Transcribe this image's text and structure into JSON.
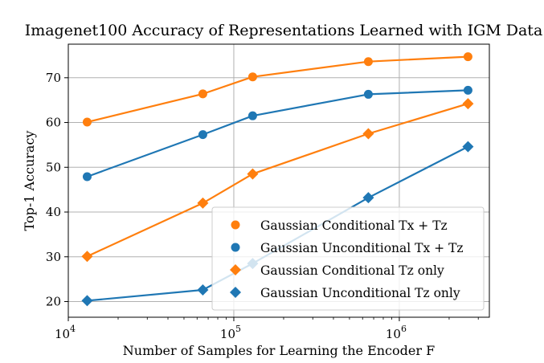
{
  "chart_data": {
    "type": "line",
    "title": "Imagenet100 Accuracy of Representations Learned with IGM Data",
    "xlabel": "Number of Samples for Learning the Encoder F",
    "ylabel": "Top-1 Accuracy",
    "xscale": "log",
    "xlim": [
      10000,
      3500000
    ],
    "ylim": [
      16.5,
      77.5
    ],
    "grid": true,
    "legend_position": "lower right",
    "x_ticks": [
      {
        "value": 10000,
        "base": "10",
        "exp": "4"
      },
      {
        "value": 100000,
        "base": "10",
        "exp": "5"
      },
      {
        "value": 1000000,
        "base": "10",
        "exp": "6"
      }
    ],
    "y_ticks": [
      20,
      30,
      40,
      50,
      60,
      70
    ],
    "x": [
      13000,
      65000,
      130000,
      650000,
      2600000
    ],
    "series": [
      {
        "name": "Gaussian Conditional Tx + Tz",
        "color": "#ff7f0e",
        "marker": "circle",
        "values": [
          60.1,
          66.4,
          70.2,
          73.6,
          74.7
        ]
      },
      {
        "name": "Gaussian Unconditional Tx + Tz",
        "color": "#1f77b4",
        "marker": "circle",
        "values": [
          47.9,
          57.3,
          61.5,
          66.3,
          67.2
        ]
      },
      {
        "name": "Gaussian Conditional Tz only",
        "color": "#ff7f0e",
        "marker": "diamond",
        "values": [
          30.1,
          42.0,
          48.5,
          57.5,
          64.2
        ]
      },
      {
        "name": "Gaussian Unconditional Tz only",
        "color": "#1f77b4",
        "marker": "diamond",
        "values": [
          20.2,
          22.6,
          28.5,
          43.2,
          54.6
        ]
      }
    ]
  }
}
